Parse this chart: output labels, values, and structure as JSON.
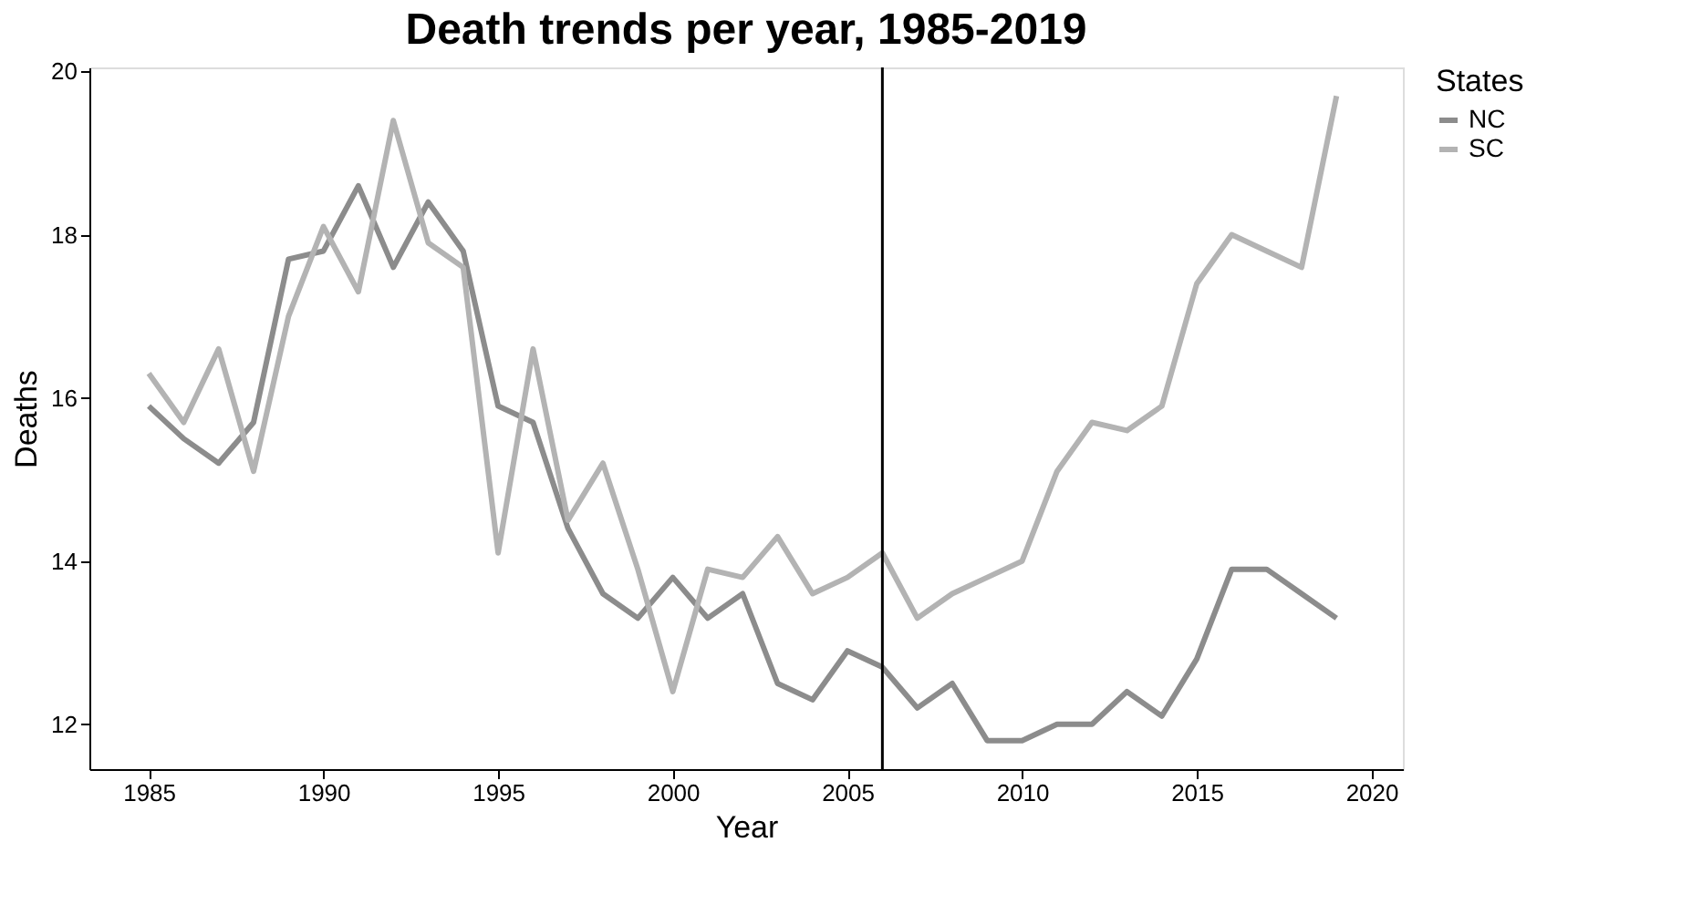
{
  "chart_data": {
    "type": "line",
    "title": "Death trends per year, 1985-2019",
    "xlabel": "Year",
    "ylabel": "Deaths",
    "legend_title": "States",
    "legend": "right",
    "grid": false,
    "line_style": "solid",
    "x": [
      1985,
      1986,
      1987,
      1988,
      1989,
      1990,
      1991,
      1992,
      1993,
      1994,
      1995,
      1996,
      1997,
      1998,
      1999,
      2000,
      2001,
      2002,
      2003,
      2004,
      2005,
      2006,
      2007,
      2008,
      2009,
      2010,
      2011,
      2012,
      2013,
      2014,
      2015,
      2016,
      2017,
      2018,
      2019
    ],
    "series": [
      {
        "name": "NC",
        "color": "#8c8c8c",
        "values": [
          15.9,
          15.5,
          15.2,
          15.7,
          17.7,
          17.8,
          18.6,
          17.6,
          18.4,
          17.8,
          15.9,
          15.7,
          14.4,
          13.6,
          13.3,
          13.8,
          13.3,
          13.6,
          12.5,
          12.3,
          12.9,
          12.7,
          12.2,
          12.5,
          11.8,
          11.8,
          12.0,
          12.0,
          12.4,
          12.1,
          12.8,
          13.9,
          13.9,
          13.6,
          13.3
        ]
      },
      {
        "name": "SC",
        "color": "#b3b3b3",
        "values": [
          16.3,
          15.7,
          16.6,
          15.1,
          17.0,
          18.1,
          17.3,
          19.4,
          17.9,
          17.6,
          14.1,
          16.6,
          14.5,
          15.2,
          13.9,
          12.4,
          13.9,
          13.8,
          14.3,
          13.6,
          13.8,
          14.1,
          13.3,
          13.6,
          13.8,
          14.0,
          15.1,
          15.7,
          15.6,
          15.9,
          17.4,
          18.0,
          17.8,
          17.6,
          19.7
        ]
      }
    ],
    "xlim": [
      1983.3,
      2020.9
    ],
    "xticks": [
      1985,
      1990,
      1995,
      2000,
      2005,
      2010,
      2015,
      2020
    ],
    "ylim": [
      11.45,
      20.05
    ],
    "yticks": [
      12,
      14,
      16,
      18,
      20
    ],
    "ref_lines": [
      {
        "axis": "x",
        "value": 2006,
        "color": "#000000"
      }
    ]
  }
}
